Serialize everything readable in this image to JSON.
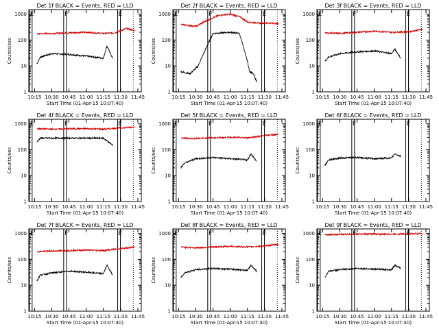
{
  "common": {
    "xlabel": "Start Time (01-Apr-15 10:07:40)",
    "ylabel": "Counts/sec",
    "x_ticks": [
      "10:15",
      "10:30",
      "10:45",
      "11:00",
      "11:15",
      "11:30",
      "11:45"
    ],
    "y_ticks": [
      "1",
      "10",
      "100",
      "1000"
    ],
    "markers": [
      "E",
      "F",
      "E"
    ],
    "colors": {
      "events": "#000000",
      "lld": "#d00000"
    }
  },
  "chart_data": [
    {
      "type": "line",
      "title": "Det 1f BLACK = Events, RED = LLD",
      "y_scale": "log",
      "ylim": [
        1,
        1500
      ],
      "xlim": [
        "10:10",
        "11:48"
      ],
      "series": [
        {
          "name": "Events",
          "color": "#000000",
          "x": [
            "10:17",
            "10:20",
            "10:30",
            "10:45",
            "11:00",
            "11:15",
            "11:18",
            "11:23"
          ],
          "y": [
            12,
            22,
            30,
            28,
            24,
            20,
            60,
            20
          ]
        },
        {
          "name": "LLD",
          "color": "#d00000",
          "x": [
            "10:17",
            "10:30",
            "10:45",
            "11:00",
            "11:15",
            "11:25",
            "11:35",
            "11:42"
          ],
          "y": [
            175,
            180,
            190,
            200,
            180,
            190,
            280,
            230
          ]
        }
      ]
    },
    {
      "type": "line",
      "title": "Det 2f BLACK = Events, RED = LLD",
      "y_scale": "log",
      "ylim": [
        1,
        1500
      ],
      "xlim": [
        "10:10",
        "11:48"
      ],
      "series": [
        {
          "name": "Events",
          "color": "#000000",
          "x": [
            "10:17",
            "10:25",
            "10:32",
            "10:38",
            "10:45",
            "11:00",
            "11:08",
            "11:15",
            "11:17",
            "11:20",
            "11:23"
          ],
          "y": [
            6,
            5,
            10,
            40,
            180,
            200,
            180,
            15,
            6,
            5,
            2.5
          ]
        },
        {
          "name": "LLD",
          "color": "#d00000",
          "x": [
            "10:17",
            "10:30",
            "10:40",
            "10:50",
            "11:00",
            "11:08",
            "11:15",
            "11:25",
            "11:35",
            "11:42"
          ],
          "y": [
            400,
            340,
            580,
            900,
            1000,
            800,
            500,
            450,
            450,
            430
          ]
        }
      ]
    },
    {
      "type": "line",
      "title": "Det 3f BLACK = Events, RED = LLD",
      "y_scale": "log",
      "ylim": [
        1,
        1500
      ],
      "xlim": [
        "10:10",
        "11:48"
      ],
      "series": [
        {
          "name": "Events",
          "color": "#000000",
          "x": [
            "10:17",
            "10:20",
            "10:30",
            "10:45",
            "11:00",
            "11:15",
            "11:18",
            "11:23"
          ],
          "y": [
            15,
            22,
            30,
            35,
            38,
            30,
            45,
            20
          ]
        },
        {
          "name": "LLD",
          "color": "#d00000",
          "x": [
            "10:17",
            "10:30",
            "10:45",
            "11:00",
            "11:15",
            "11:30",
            "11:42"
          ],
          "y": [
            190,
            180,
            200,
            220,
            200,
            210,
            260
          ]
        }
      ]
    },
    {
      "type": "line",
      "title": "Det 4f BLACK = Events, RED = LLD",
      "y_scale": "log",
      "ylim": [
        1,
        1500
      ],
      "xlim": [
        "10:10",
        "11:48"
      ],
      "series": [
        {
          "name": "Events",
          "color": "#000000",
          "x": [
            "10:17",
            "10:20",
            "10:30",
            "10:45",
            "11:00",
            "11:15",
            "11:18",
            "11:23"
          ],
          "y": [
            200,
            280,
            280,
            280,
            280,
            280,
            220,
            150
          ]
        },
        {
          "name": "LLD",
          "color": "#d00000",
          "x": [
            "10:17",
            "10:30",
            "10:45",
            "11:00",
            "11:15",
            "11:30",
            "11:42"
          ],
          "y": [
            650,
            620,
            640,
            650,
            620,
            700,
            760
          ]
        }
      ]
    },
    {
      "type": "line",
      "title": "Det 5f BLACK = Events, RED = LLD",
      "y_scale": "log",
      "ylim": [
        1,
        1500
      ],
      "xlim": [
        "10:10",
        "11:48"
      ],
      "series": [
        {
          "name": "Events",
          "color": "#000000",
          "x": [
            "10:17",
            "10:20",
            "10:30",
            "10:45",
            "11:00",
            "11:15",
            "11:18",
            "11:23"
          ],
          "y": [
            20,
            30,
            45,
            50,
            45,
            40,
            70,
            35
          ]
        },
        {
          "name": "LLD",
          "color": "#d00000",
          "x": [
            "10:17",
            "10:30",
            "10:45",
            "11:00",
            "11:15",
            "11:30",
            "11:42"
          ],
          "y": [
            280,
            270,
            290,
            300,
            290,
            350,
            400
          ]
        }
      ]
    },
    {
      "type": "line",
      "title": "Det 6f BLACK = Events, RED = LLD",
      "y_scale": "log",
      "ylim": [
        1,
        1500
      ],
      "xlim": [
        "10:10",
        "11:48"
      ],
      "series": [
        {
          "name": "Events",
          "color": "#000000",
          "x": [
            "10:17",
            "10:20",
            "10:30",
            "10:45",
            "11:00",
            "11:15",
            "11:18",
            "11:23"
          ],
          "y": [
            25,
            40,
            48,
            50,
            45,
            48,
            70,
            55
          ]
        }
      ]
    },
    {
      "type": "line",
      "title": "Det 7f BLACK = Events, RED = LLD",
      "y_scale": "log",
      "ylim": [
        1,
        1500
      ],
      "xlim": [
        "10:10",
        "11:48"
      ],
      "series": [
        {
          "name": "Events",
          "color": "#000000",
          "x": [
            "10:17",
            "10:20",
            "10:30",
            "10:45",
            "11:00",
            "11:15",
            "11:18",
            "11:23"
          ],
          "y": [
            15,
            25,
            30,
            35,
            32,
            28,
            60,
            25
          ]
        },
        {
          "name": "LLD",
          "color": "#d00000",
          "x": [
            "10:17",
            "10:30",
            "10:45",
            "11:00",
            "11:15",
            "11:30",
            "11:42"
          ],
          "y": [
            200,
            210,
            220,
            230,
            220,
            260,
            300
          ]
        }
      ]
    },
    {
      "type": "line",
      "title": "Det 8f BLACK = Events, RED = LLD",
      "y_scale": "log",
      "ylim": [
        1,
        1500
      ],
      "xlim": [
        "10:10",
        "11:48"
      ],
      "series": [
        {
          "name": "Events",
          "color": "#000000",
          "x": [
            "10:17",
            "10:20",
            "10:30",
            "10:45",
            "11:00",
            "11:15",
            "11:18",
            "11:23"
          ],
          "y": [
            20,
            30,
            40,
            45,
            42,
            38,
            60,
            35
          ]
        },
        {
          "name": "LLD",
          "color": "#d00000",
          "x": [
            "10:17",
            "10:30",
            "10:45",
            "11:00",
            "11:15",
            "11:30",
            "11:42"
          ],
          "y": [
            300,
            280,
            300,
            320,
            300,
            330,
            380
          ]
        }
      ]
    },
    {
      "type": "line",
      "title": "Det 9f BLACK = Events, RED = LLD",
      "y_scale": "log",
      "ylim": [
        1,
        1500
      ],
      "xlim": [
        "10:10",
        "11:48"
      ],
      "series": [
        {
          "name": "Events",
          "color": "#000000",
          "x": [
            "10:17",
            "10:20",
            "10:30",
            "10:45",
            "11:00",
            "11:15",
            "11:18",
            "11:23"
          ],
          "y": [
            20,
            35,
            40,
            45,
            42,
            40,
            60,
            45
          ]
        },
        {
          "name": "LLD",
          "color": "#d00000",
          "x": [
            "10:17",
            "10:30",
            "10:45",
            "11:00",
            "11:15",
            "11:30",
            "11:42"
          ],
          "y": [
            900,
            920,
            950,
            950,
            940,
            980,
            1000
          ]
        }
      ]
    }
  ]
}
